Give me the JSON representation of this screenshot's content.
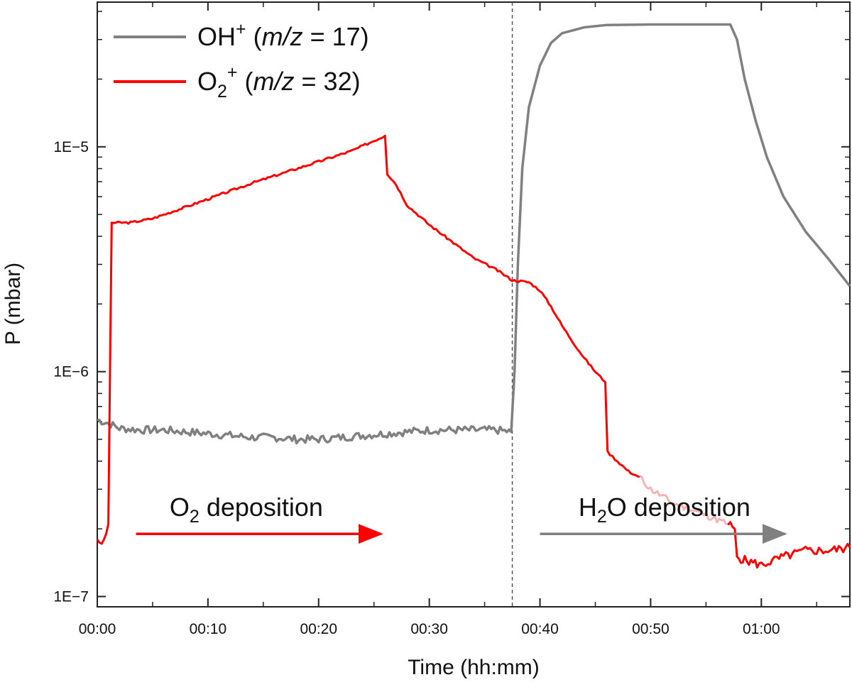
{
  "chart_data": {
    "type": "line",
    "xlabel": "Time (hh:mm)",
    "ylabel": "P (mbar)",
    "yscale": "log",
    "xlim_min": [
      0,
      68
    ],
    "ylim": [
      9e-08,
      4.4e-05
    ],
    "x_ticks": [
      {
        "min": 0,
        "label": "00:00"
      },
      {
        "min": 10,
        "label": "00:10"
      },
      {
        "min": 20,
        "label": "00:20"
      },
      {
        "min": 30,
        "label": "00:30"
      },
      {
        "min": 40,
        "label": "00:40"
      },
      {
        "min": 50,
        "label": "00:50"
      },
      {
        "min": 60,
        "label": "01:00"
      }
    ],
    "y_ticks": [
      {
        "value": 1e-07,
        "label": "1E−7"
      },
      {
        "value": 1e-06,
        "label": "1E−6"
      },
      {
        "value": 1e-05,
        "label": "1E−5"
      }
    ],
    "vline_min": 37.5,
    "series": [
      {
        "name": "OH+ (m/z = 17)",
        "legend": {
          "base": "OH",
          "sup": "+",
          "pre": " (",
          "italic": "m/z",
          "post": " = 17)"
        },
        "color": "#808080",
        "points": [
          [
            0,
            6.1e-07
          ],
          [
            1,
            5.9e-07
          ],
          [
            2,
            5.6e-07
          ],
          [
            4,
            5.5e-07
          ],
          [
            6,
            5.5e-07
          ],
          [
            8,
            5.4e-07
          ],
          [
            10,
            5.3e-07
          ],
          [
            12,
            5.2e-07
          ],
          [
            14,
            5.1e-07
          ],
          [
            16,
            5.1e-07
          ],
          [
            18,
            5e-07
          ],
          [
            20,
            5e-07
          ],
          [
            22,
            5.1e-07
          ],
          [
            24,
            5.2e-07
          ],
          [
            26,
            5.3e-07
          ],
          [
            28,
            5.4e-07
          ],
          [
            30,
            5.5e-07
          ],
          [
            32,
            5.5e-07
          ],
          [
            34,
            5.5e-07
          ],
          [
            36,
            5.5e-07
          ],
          [
            37.4,
            5.4e-07
          ],
          [
            37.7,
            1e-06
          ],
          [
            38.0,
            3e-06
          ],
          [
            38.4,
            8e-06
          ],
          [
            39,
            1.5e-05
          ],
          [
            40,
            2.3e-05
          ],
          [
            41,
            2.9e-05
          ],
          [
            42,
            3.2e-05
          ],
          [
            44,
            3.4e-05
          ],
          [
            46,
            3.48e-05
          ],
          [
            50,
            3.5e-05
          ],
          [
            54,
            3.5e-05
          ],
          [
            57.2,
            3.5e-05
          ],
          [
            57.8,
            3e-05
          ],
          [
            58.5,
            2e-05
          ],
          [
            59.5,
            1.3e-05
          ],
          [
            60.5,
            9e-06
          ],
          [
            62,
            6e-06
          ],
          [
            64,
            4.2e-06
          ],
          [
            66,
            3.2e-06
          ],
          [
            68,
            2.4e-06
          ]
        ]
      },
      {
        "name": "O2+ (m/z = 32)",
        "legend": {
          "base": "O",
          "sub": "2",
          "sup": "+",
          "pre": " (",
          "italic": "m/z",
          "post": " = 32)"
        },
        "color": "#ff0000",
        "points": [
          [
            0,
            1.8e-07
          ],
          [
            0.4,
            1.7e-07
          ],
          [
            0.8,
            1.9e-07
          ],
          [
            1.0,
            2.1e-07
          ],
          [
            1.3,
            4.6e-06
          ],
          [
            3,
            4.6e-06
          ],
          [
            5,
            4.8e-06
          ],
          [
            8,
            5.4e-06
          ],
          [
            11,
            6.1e-06
          ],
          [
            14,
            6.9e-06
          ],
          [
            17,
            7.7e-06
          ],
          [
            20,
            8.6e-06
          ],
          [
            23,
            9.6e-06
          ],
          [
            26,
            1.12e-05
          ],
          [
            26.2,
            7.6e-06
          ],
          [
            27,
            6.8e-06
          ],
          [
            28,
            5.5e-06
          ],
          [
            30,
            4.5e-06
          ],
          [
            32,
            3.8e-06
          ],
          [
            34,
            3.2e-06
          ],
          [
            36,
            2.85e-06
          ],
          [
            37.5,
            2.55e-06
          ],
          [
            39,
            2.5e-06
          ],
          [
            40,
            2.3e-06
          ],
          [
            41,
            1.95e-06
          ],
          [
            42,
            1.6e-06
          ],
          [
            43,
            1.35e-06
          ],
          [
            44,
            1.15e-06
          ],
          [
            45,
            1e-06
          ],
          [
            45.9,
            9e-07
          ],
          [
            46.1,
            4.4e-07
          ],
          [
            47,
            4e-07
          ],
          [
            48,
            3.6e-07
          ],
          [
            49,
            3.4e-07
          ]
        ]
      }
    ],
    "faded_segment": {
      "color": "#f5b5b5",
      "points": [
        [
          49,
          3.4e-07
        ],
        [
          50,
          3e-07
        ],
        [
          51,
          2.8e-07
        ],
        [
          52,
          2.6e-07
        ],
        [
          53,
          2.5e-07
        ],
        [
          54,
          2.4e-07
        ],
        [
          55,
          2.3e-07
        ],
        [
          56,
          2.2e-07
        ],
        [
          57,
          2.1e-07
        ]
      ]
    },
    "tail_segment": {
      "color": "#ff0000",
      "points": [
        [
          57,
          2.1e-07
        ],
        [
          57.6,
          2e-07
        ],
        [
          57.8,
          1.5e-07
        ],
        [
          58.5,
          1.45e-07
        ],
        [
          60,
          1.38e-07
        ],
        [
          62,
          1.5e-07
        ],
        [
          64,
          1.6e-07
        ],
        [
          66,
          1.6e-07
        ],
        [
          68,
          1.65e-07
        ]
      ]
    },
    "annotations": [
      {
        "label": "O2 deposition",
        "base": "O",
        "sub": "2",
        "rest": " deposition",
        "color": "#ff0000",
        "from_min": 3.5,
        "to_min": 26,
        "value": 1.9e-07
      },
      {
        "label": "H2O deposition",
        "base": "H",
        "sub": "2",
        "rest": "O deposition",
        "color": "#808080",
        "from_min": 40,
        "to_min": 62.5,
        "value": 1.9e-07
      }
    ]
  }
}
